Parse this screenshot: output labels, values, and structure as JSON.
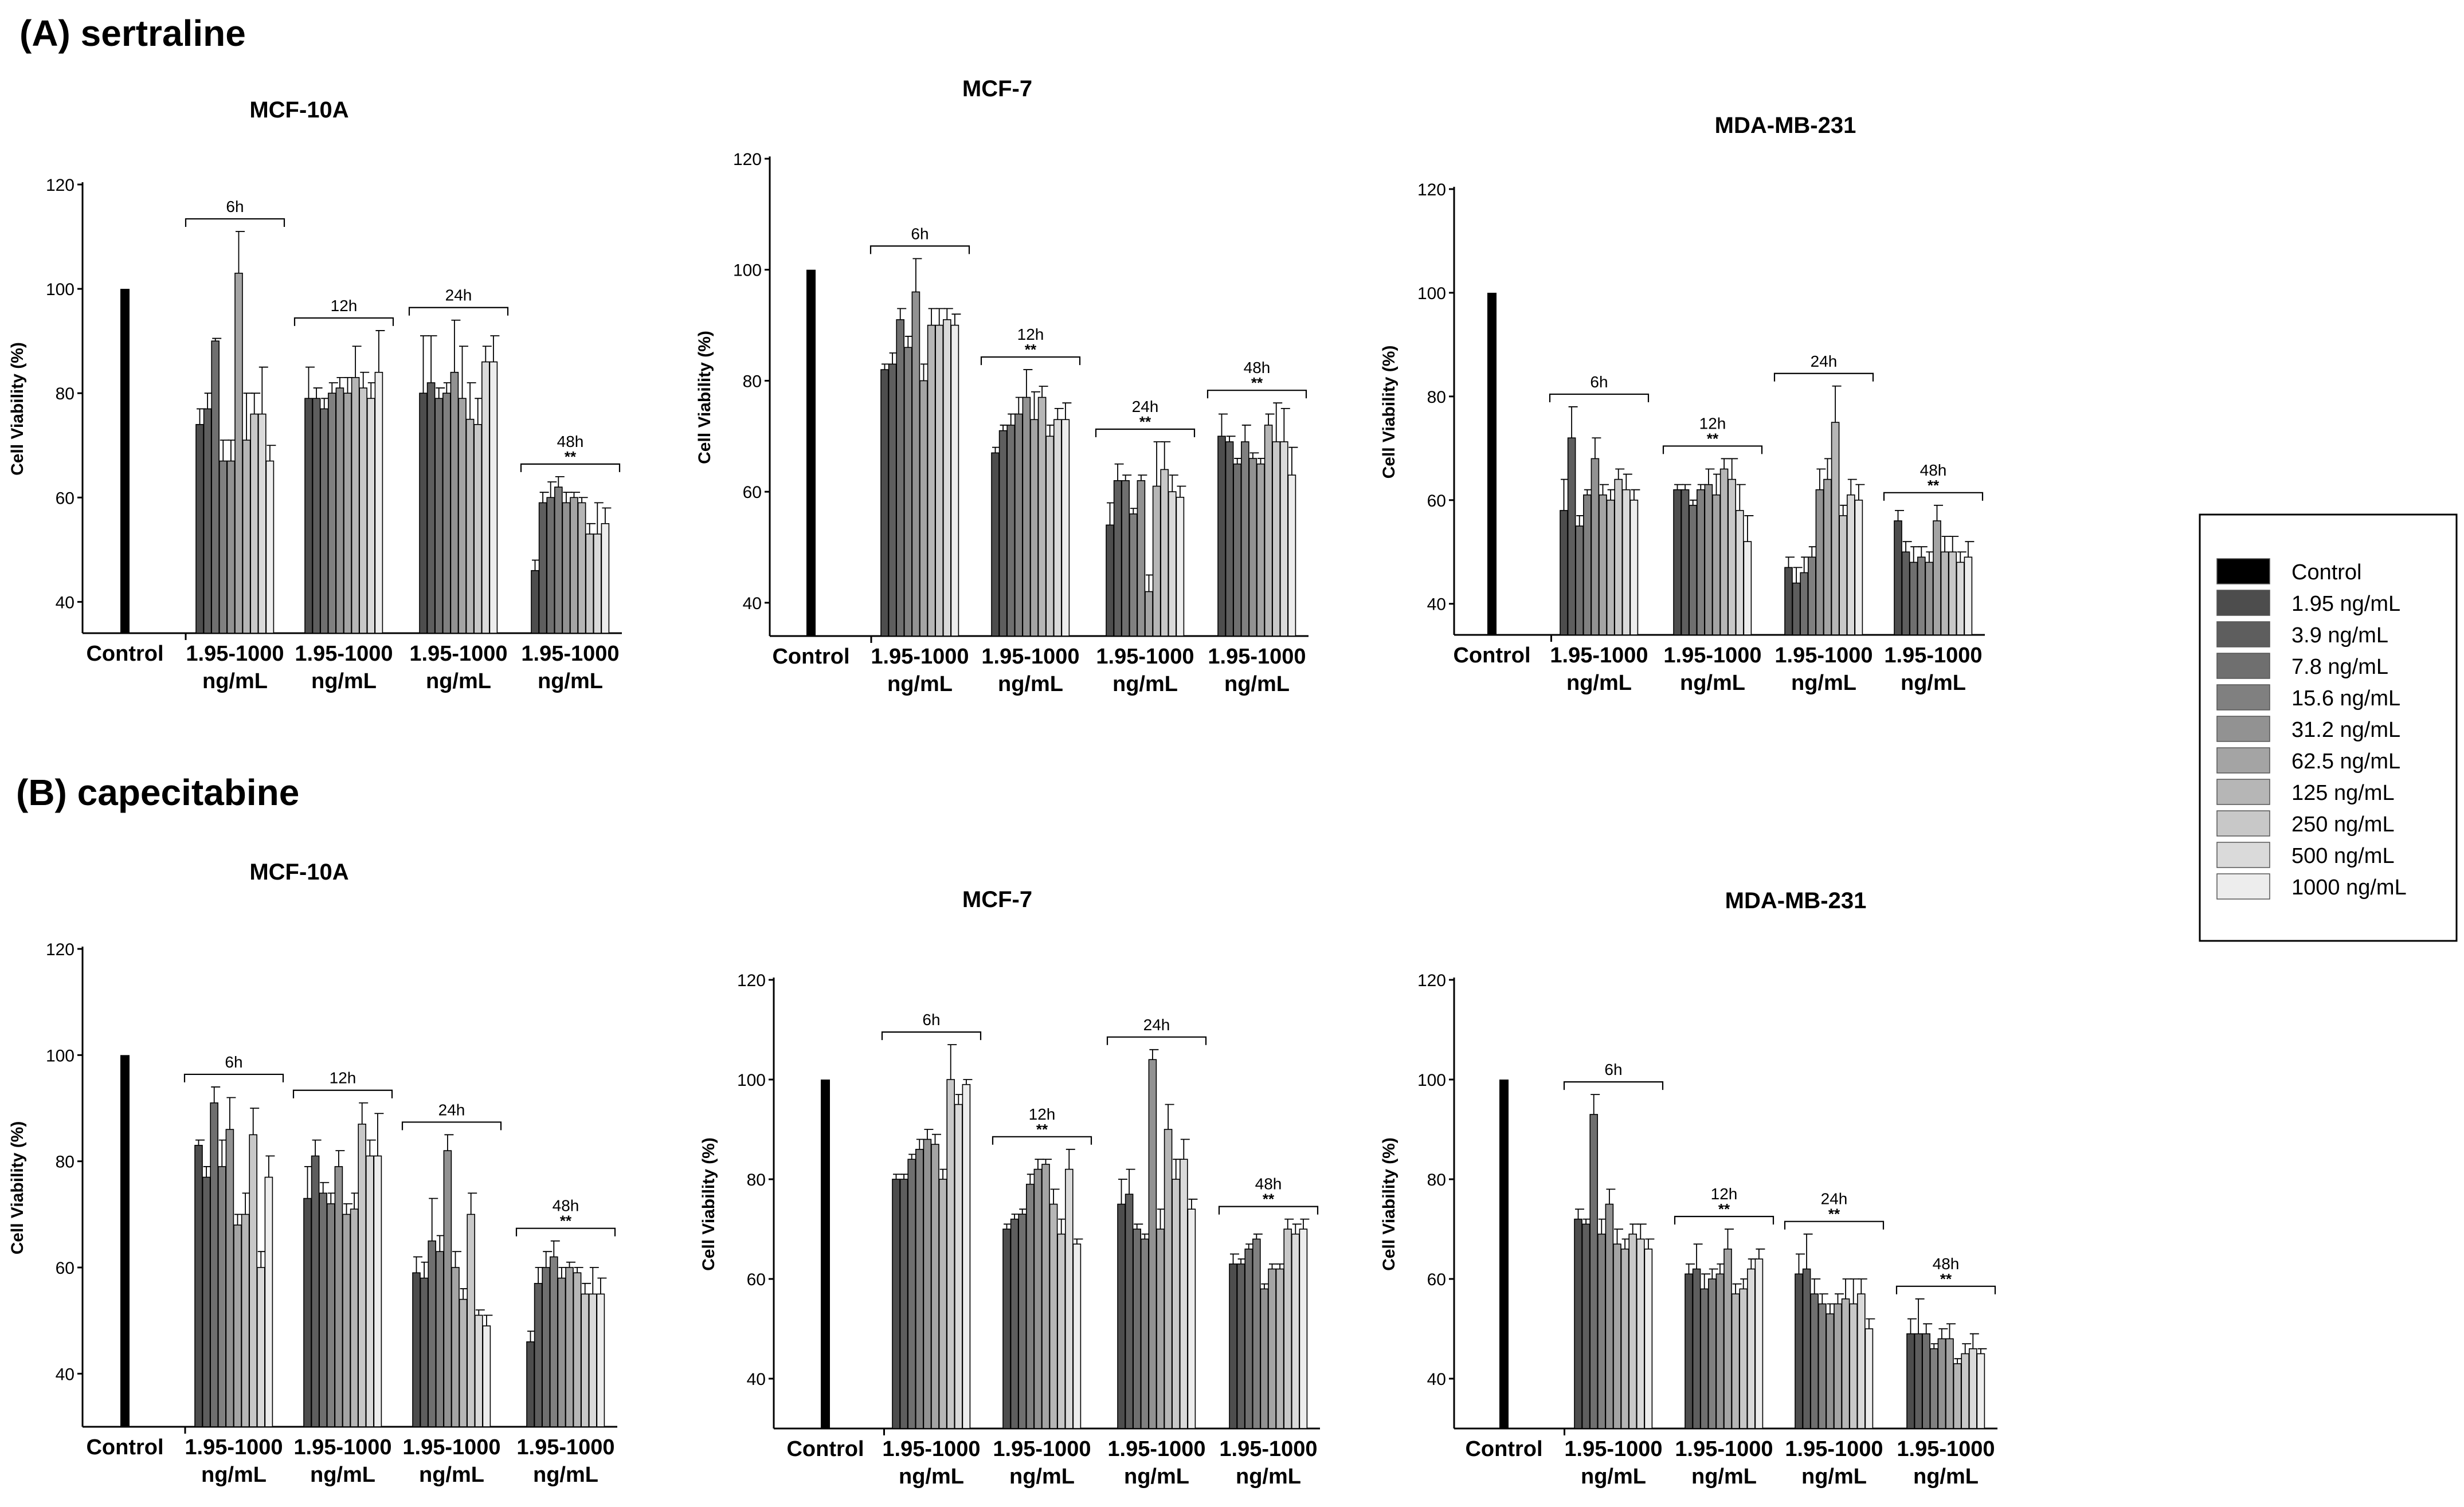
{
  "sections": [
    {
      "title": "(A) sertraline",
      "panels": [
        {
          "title": "MCF-10A",
          "ylabel": "Cell Viability (%)",
          "yticks": [
            40,
            60,
            80,
            100,
            120
          ],
          "ylim": [
            34,
            120
          ],
          "control_label": "Control",
          "control_value": 100,
          "groups": [
            {
              "tp": "6h",
              "sig": "",
              "values": [
                74,
                77,
                90,
                67,
                67,
                103,
                71,
                76,
                76,
                67
              ],
              "errors": [
                3,
                3,
                0.5,
                4,
                4,
                8,
                9,
                4,
                9,
                3
              ]
            },
            {
              "tp": "12h",
              "sig": "",
              "values": [
                79,
                79,
                77,
                80,
                81,
                80,
                83,
                81,
                79,
                84
              ],
              "errors": [
                6,
                2,
                2,
                2,
                2,
                3,
                6,
                3,
                3,
                8
              ]
            },
            {
              "tp": "24h",
              "sig": "",
              "values": [
                80,
                82,
                79,
                80,
                84,
                79,
                75,
                74,
                86,
                86
              ],
              "errors": [
                11,
                9,
                2,
                2,
                10,
                10,
                7,
                5,
                3,
                5
              ]
            },
            {
              "tp": "48h",
              "sig": "**",
              "values": [
                46,
                59,
                60,
                62,
                59,
                60,
                59,
                53,
                53,
                55
              ],
              "errors": [
                2,
                2,
                3,
                2,
                2,
                1,
                1,
                2,
                6,
                3
              ]
            }
          ]
        },
        {
          "title": "MCF-7",
          "ylabel": "Cell Viability (%)",
          "yticks": [
            40,
            60,
            80,
            100,
            120
          ],
          "ylim": [
            34,
            120
          ],
          "control_label": "Control",
          "control_value": 100,
          "groups": [
            {
              "tp": "6h",
              "sig": "",
              "values": [
                82,
                83,
                91,
                86,
                96,
                80,
                90,
                90,
                91,
                90
              ],
              "errors": [
                1,
                2,
                2,
                2,
                6,
                3,
                3,
                3,
                2,
                2
              ]
            },
            {
              "tp": "12h",
              "sig": "**",
              "values": [
                67,
                71,
                72,
                74,
                77,
                73,
                77,
                70,
                73,
                73
              ],
              "errors": [
                1,
                1,
                2,
                3,
                5,
                5,
                2,
                2,
                2,
                3
              ]
            },
            {
              "tp": "24h",
              "sig": "**",
              "values": [
                54,
                62,
                62,
                56,
                62,
                42,
                61,
                64,
                60,
                59
              ],
              "errors": [
                4,
                3,
                1,
                1,
                1,
                3,
                8,
                5,
                3,
                2
              ]
            },
            {
              "tp": "48h",
              "sig": "**",
              "values": [
                70,
                69,
                65,
                69,
                66,
                65,
                72,
                69,
                69,
                63
              ],
              "errors": [
                4,
                1,
                1,
                3,
                1,
                1,
                2,
                7,
                6,
                5
              ]
            }
          ]
        },
        {
          "title": "MDA-MB-231",
          "ylabel": "Cell Viability (%)",
          "yticks": [
            40,
            60,
            80,
            100,
            120
          ],
          "ylim": [
            34,
            120
          ],
          "control_label": "Control",
          "control_value": 100,
          "groups": [
            {
              "tp": "6h",
              "sig": "",
              "values": [
                58,
                72,
                55,
                61,
                68,
                61,
                60,
                64,
                62,
                60
              ],
              "errors": [
                6,
                6,
                2,
                1,
                4,
                2,
                2,
                2,
                3,
                2
              ]
            },
            {
              "tp": "12h",
              "sig": "**",
              "values": [
                62,
                62,
                59,
                62,
                63,
                61,
                66,
                64,
                58,
                52
              ],
              "errors": [
                1,
                1,
                1,
                1,
                3,
                4,
                2,
                4,
                5,
                5
              ]
            },
            {
              "tp": "24h",
              "sig": "",
              "values": [
                47,
                44,
                46,
                49,
                62,
                64,
                75,
                57,
                61,
                60
              ],
              "errors": [
                2,
                3,
                3,
                2,
                4,
                4,
                7,
                2,
                3,
                3
              ]
            },
            {
              "tp": "48h",
              "sig": "**",
              "values": [
                56,
                50,
                48,
                49,
                48,
                56,
                50,
                50,
                48,
                49
              ],
              "errors": [
                2,
                2,
                3,
                2,
                2,
                3,
                3,
                3,
                2,
                3
              ]
            }
          ]
        }
      ]
    },
    {
      "title": "(B) capecitabine",
      "panels": [
        {
          "title": "MCF-10A",
          "ylabel": "Cell Viability (%)",
          "yticks": [
            40,
            60,
            80,
            100,
            120
          ],
          "ylim": [
            30,
            120
          ],
          "control_label": "Control",
          "control_value": 100,
          "groups": [
            {
              "tp": "6h",
              "sig": "",
              "values": [
                83,
                77,
                91,
                79,
                86,
                68,
                70,
                85,
                60,
                77
              ],
              "errors": [
                1,
                2,
                3,
                5,
                6,
                2,
                4,
                5,
                3,
                4
              ]
            },
            {
              "tp": "12h",
              "sig": "",
              "values": [
                73,
                81,
                74,
                72,
                79,
                70,
                71,
                87,
                81,
                81
              ],
              "errors": [
                6,
                3,
                2,
                2,
                3,
                2,
                3,
                4,
                3,
                8
              ]
            },
            {
              "tp": "24h",
              "sig": "",
              "values": [
                59,
                58,
                65,
                63,
                82,
                60,
                54,
                70,
                51,
                49
              ],
              "errors": [
                3,
                3,
                8,
                3,
                3,
                3,
                2,
                4,
                1,
                2
              ]
            },
            {
              "tp": "48h",
              "sig": "**",
              "values": [
                46,
                57,
                60,
                62,
                58,
                60,
                59,
                55,
                55,
                55
              ],
              "errors": [
                2,
                3,
                3,
                3,
                2,
                1,
                1,
                2,
                5,
                3
              ]
            }
          ]
        },
        {
          "title": "MCF-7",
          "ylabel": "Cell Viability (%)",
          "yticks": [
            40,
            60,
            80,
            100,
            120
          ],
          "ylim": [
            30,
            120
          ],
          "control_label": "Control",
          "control_value": 100,
          "groups": [
            {
              "tp": "6h",
              "sig": "",
              "values": [
                80,
                80,
                84,
                86,
                88,
                87,
                80,
                100,
                95,
                99
              ],
              "errors": [
                1,
                1,
                1,
                2,
                2,
                2,
                2,
                7,
                2,
                1
              ]
            },
            {
              "tp": "12h",
              "sig": "**",
              "values": [
                70,
                72,
                73,
                79,
                82,
                83,
                75,
                69,
                82,
                67
              ],
              "errors": [
                1,
                1,
                1,
                2,
                2,
                1,
                3,
                3,
                4,
                1
              ]
            },
            {
              "tp": "24h",
              "sig": "",
              "values": [
                75,
                77,
                70,
                68,
                104,
                70,
                90,
                80,
                84,
                74
              ],
              "errors": [
                5,
                5,
                1,
                1,
                2,
                4,
                5,
                4,
                4,
                2
              ]
            },
            {
              "tp": "48h",
              "sig": "**",
              "values": [
                63,
                63,
                66,
                68,
                58,
                62,
                62,
                70,
                69,
                70
              ],
              "errors": [
                2,
                1,
                1,
                1,
                1,
                1,
                1,
                2,
                2,
                2
              ]
            }
          ]
        },
        {
          "title": "MDA-MB-231",
          "ylabel": "Cell Viability (%)",
          "yticks": [
            40,
            60,
            80,
            100,
            120
          ],
          "ylim": [
            30,
            120
          ],
          "control_label": "Control",
          "control_value": 100,
          "groups": [
            {
              "tp": "6h",
              "sig": "",
              "values": [
                72,
                71,
                93,
                69,
                75,
                67,
                66,
                69,
                68,
                66
              ],
              "errors": [
                2,
                1,
                4,
                3,
                3,
                3,
                2,
                2,
                3,
                2
              ]
            },
            {
              "tp": "12h",
              "sig": "**",
              "values": [
                61,
                62,
                58,
                60,
                61,
                66,
                57,
                58,
                62,
                64
              ],
              "errors": [
                2,
                5,
                3,
                2,
                2,
                4,
                2,
                2,
                2,
                2
              ]
            },
            {
              "tp": "24h",
              "sig": "**",
              "values": [
                61,
                62,
                57,
                55,
                53,
                55,
                56,
                55,
                57,
                50
              ],
              "errors": [
                4,
                7,
                3,
                2,
                2,
                2,
                4,
                5,
                3,
                2
              ]
            },
            {
              "tp": "48h",
              "sig": "**",
              "values": [
                49,
                49,
                49,
                46,
                48,
                48,
                43,
                45,
                46,
                45
              ],
              "errors": [
                3,
                7,
                2,
                1,
                2,
                3,
                1,
                2,
                3,
                1
              ]
            }
          ]
        }
      ]
    }
  ],
  "group_label_line1": "1.95-1000",
  "group_label_line2": "ng/mL",
  "legend": {
    "entries": [
      "Control",
      "1.95 ng/mL",
      "3.9 ng/mL",
      "7.8 ng/mL",
      "15.6 ng/mL",
      "31.2 ng/mL",
      "62.5 ng/mL",
      "125 ng/mL",
      "250 ng/mL",
      "500 ng/mL",
      "1000 ng/mL"
    ],
    "colors": [
      "#000000",
      "#4d4d4d",
      "#5e5e5e",
      "#6f6f6f",
      "#808080",
      "#929292",
      "#a4a4a4",
      "#b6b6b6",
      "#c8c8c8",
      "#dadada",
      "#ededed"
    ]
  },
  "chart_data": [
    {
      "type": "bar",
      "title": "(A) sertraline - MCF-10A",
      "ylabel": "Cell Viability (%)",
      "ylim": [
        34,
        120
      ],
      "categories": [
        "Control",
        "6h",
        "12h",
        "24h",
        "48h"
      ],
      "series_note": "Each time group shows 10 concentrations: 1.95, 3.9, 7.8, 15.6, 31.2, 62.5, 125, 250, 500, 1000 ng/mL"
    },
    {
      "type": "bar",
      "title": "(A) sertraline - MCF-7",
      "ylabel": "Cell Viability (%)",
      "ylim": [
        34,
        120
      ],
      "categories": [
        "Control",
        "6h",
        "12h",
        "24h",
        "48h"
      ]
    },
    {
      "type": "bar",
      "title": "(A) sertraline - MDA-MB-231",
      "ylabel": "Cell Viability (%)",
      "ylim": [
        34,
        120
      ],
      "categories": [
        "Control",
        "6h",
        "12h",
        "24h",
        "48h"
      ]
    },
    {
      "type": "bar",
      "title": "(B) capecitabine - MCF-10A",
      "ylabel": "Cell Viability (%)",
      "ylim": [
        30,
        120
      ],
      "categories": [
        "Control",
        "6h",
        "12h",
        "24h",
        "48h"
      ]
    },
    {
      "type": "bar",
      "title": "(B) capecitabine - MCF-7",
      "ylabel": "Cell Viability (%)",
      "ylim": [
        30,
        120
      ],
      "categories": [
        "Control",
        "6h",
        "12h",
        "24h",
        "48h"
      ]
    },
    {
      "type": "bar",
      "title": "(B) capecitabine - MDA-MB-231",
      "ylabel": "Cell Viability (%)",
      "ylim": [
        30,
        120
      ],
      "categories": [
        "Control",
        "6h",
        "12h",
        "24h",
        "48h"
      ]
    }
  ]
}
